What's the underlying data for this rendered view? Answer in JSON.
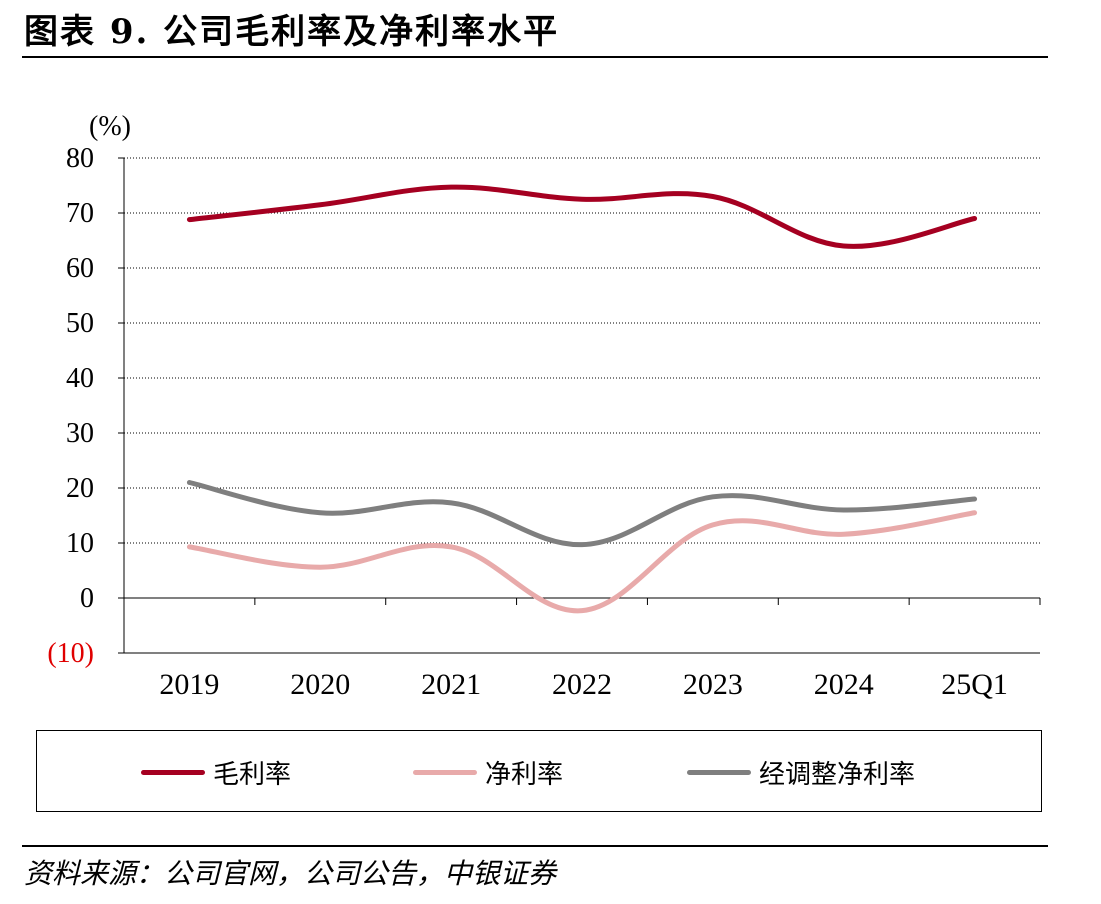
{
  "title": "图表 9. 公司毛利率及净利率水平",
  "source": "资料来源：公司官网，公司公告，中银证券",
  "chart_data": {
    "type": "line",
    "unit_label": "(%)",
    "categories": [
      "2019",
      "2020",
      "2021",
      "2022",
      "2023",
      "2024",
      "25Q1"
    ],
    "ylim": [
      -10,
      80
    ],
    "yticks": [
      -10,
      0,
      10,
      20,
      30,
      40,
      50,
      60,
      70,
      80
    ],
    "ytick_labels": [
      "(10)",
      "0",
      "10",
      "20",
      "30",
      "40",
      "50",
      "60",
      "70",
      "80"
    ],
    "negative_tick_color": "#e00000",
    "grid": true,
    "legend_position": "bottom",
    "series": [
      {
        "name": "毛利率",
        "color": "#a50021",
        "values": [
          68.8,
          71.5,
          74.7,
          72.5,
          73.0,
          64.0,
          69.0
        ]
      },
      {
        "name": "净利率",
        "color": "#e8aaaa",
        "values": [
          9.3,
          5.6,
          9.3,
          -2.3,
          13.3,
          11.6,
          15.5
        ]
      },
      {
        "name": "经调整净利率",
        "color": "#7f7f7f",
        "values": [
          21.0,
          15.5,
          17.3,
          9.7,
          18.4,
          16.0,
          18.0
        ]
      }
    ]
  }
}
